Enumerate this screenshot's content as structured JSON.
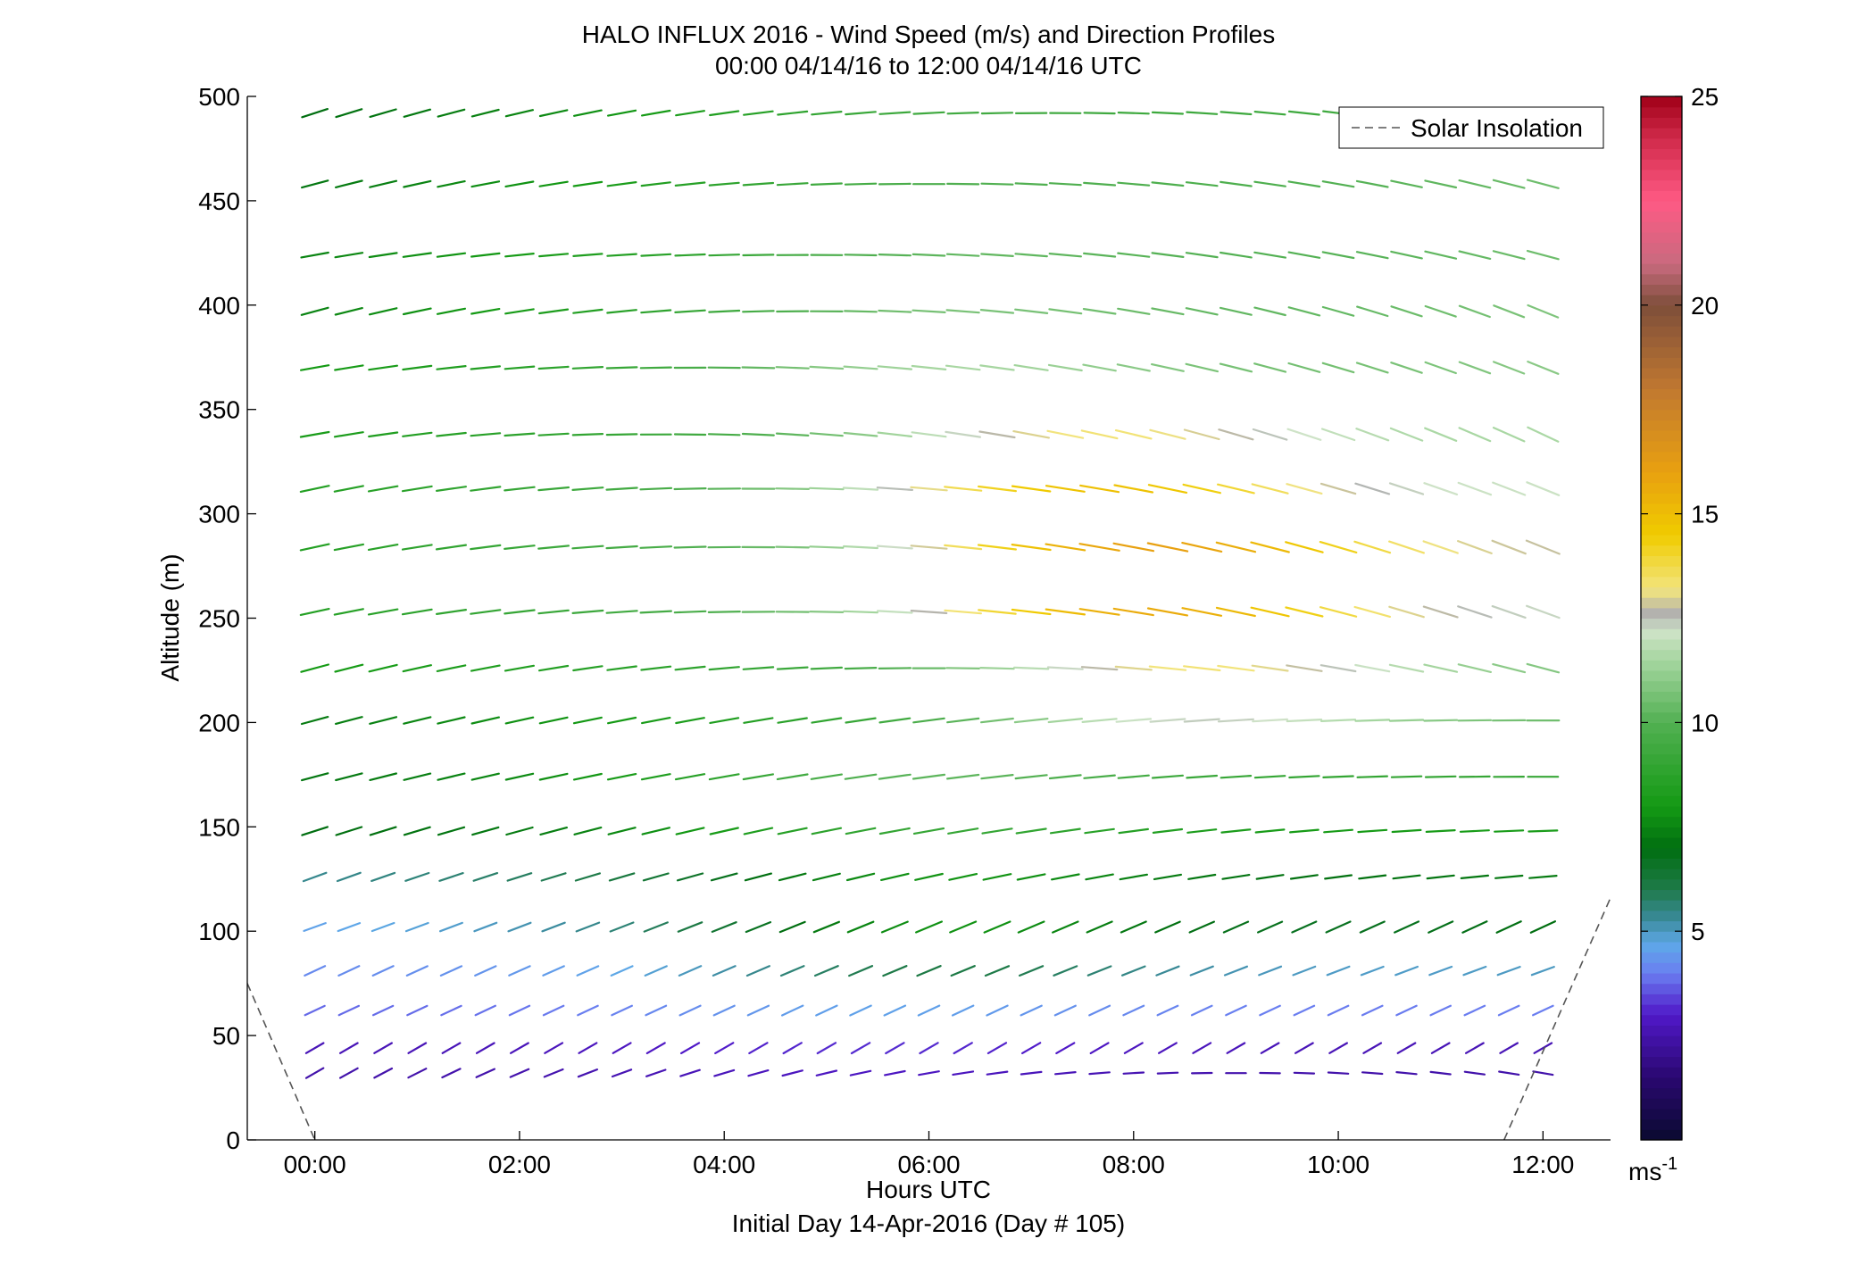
{
  "chart_data": {
    "type": "scatter",
    "title": "HALO INFLUX 2016 - Wind Speed (m/s) and Direction Profiles",
    "subtitle": "00:00 04/14/16 to 12:00 04/14/16  UTC",
    "xlabel": "Hours UTC",
    "xlabel2": "Initial Day 14-Apr-2016 (Day # 105)",
    "ylabel": "Altitude (m)",
    "xlim": [
      -0.66,
      12.66
    ],
    "ylim": [
      0,
      500
    ],
    "x_ticks": [
      0,
      2,
      4,
      6,
      8,
      10,
      12
    ],
    "x_tick_labels": [
      "00:00",
      "02:00",
      "04:00",
      "06:00",
      "08:00",
      "10:00",
      "12:00"
    ],
    "y_ticks": [
      0,
      50,
      100,
      150,
      200,
      250,
      300,
      350,
      400,
      450,
      500
    ],
    "y_tick_labels": [
      "0",
      "50",
      "100",
      "150",
      "200",
      "250",
      "300",
      "350",
      "400",
      "450",
      "500"
    ],
    "legend": {
      "position": "top-right",
      "entries": [
        {
          "name": "Solar Insolation",
          "style": "dashed",
          "color": "#555555"
        }
      ]
    },
    "colorbar": {
      "range": [
        0,
        25
      ],
      "ticks": [
        5,
        10,
        15,
        20,
        25
      ],
      "tick_labels": [
        "5",
        "10",
        "15",
        "20",
        "25"
      ],
      "unit": "ms",
      "unit_exp": "-1",
      "stops": [
        {
          "v": 0,
          "c": "#0a0a30"
        },
        {
          "v": 1.5,
          "c": "#2a0870"
        },
        {
          "v": 3,
          "c": "#5018c8"
        },
        {
          "v": 4,
          "c": "#6a7ef0"
        },
        {
          "v": 4.7,
          "c": "#5ea8e8"
        },
        {
          "v": 5.3,
          "c": "#3a8a9a"
        },
        {
          "v": 6,
          "c": "#1f7a4a"
        },
        {
          "v": 7,
          "c": "#006e10"
        },
        {
          "v": 8,
          "c": "#149a14"
        },
        {
          "v": 10,
          "c": "#52b052"
        },
        {
          "v": 11.5,
          "c": "#a6d6a0"
        },
        {
          "v": 12.2,
          "c": "#cfe3c8"
        },
        {
          "v": 12.6,
          "c": "#b0b0b0"
        },
        {
          "v": 13.2,
          "c": "#f2e47e"
        },
        {
          "v": 14.5,
          "c": "#f0cc00"
        },
        {
          "v": 16,
          "c": "#e8a010"
        },
        {
          "v": 18,
          "c": "#c07830"
        },
        {
          "v": 20,
          "c": "#7e4e3a"
        },
        {
          "v": 21,
          "c": "#c86a7e"
        },
        {
          "v": 22.5,
          "c": "#ff5a84"
        },
        {
          "v": 24,
          "c": "#d02a4a"
        },
        {
          "v": 25,
          "c": "#a00018"
        }
      ]
    },
    "solar_insolation": [
      {
        "x": [
          -0.66,
          0.0
        ],
        "y": [
          75,
          0
        ]
      },
      {
        "x": [
          11.62,
          12.66
        ],
        "y": [
          0,
          116
        ]
      }
    ],
    "altitudes": [
      32,
      44,
      62,
      81,
      102,
      126,
      148,
      174,
      201,
      226,
      253,
      284,
      312,
      338,
      370,
      397,
      424,
      458,
      492
    ],
    "hours": [
      0,
      0.333,
      0.667,
      1,
      1.333,
      1.667,
      2,
      2.333,
      2.667,
      3,
      3.333,
      3.667,
      4,
      4.333,
      4.667,
      5,
      5.333,
      5.667,
      6,
      6.333,
      6.667,
      7,
      7.333,
      7.667,
      8,
      8.333,
      8.667,
      9,
      9.333,
      9.667,
      10,
      10.333,
      10.667,
      11,
      11.333,
      11.667,
      12
    ],
    "wind_speed_profiles": [
      {
        "start": 2.5,
        "end": 2.5,
        "bump": 0.4,
        "bh": 5.5
      },
      {
        "start": 2.7,
        "end": 2.7,
        "bump": 0.5,
        "bh": 5.5
      },
      {
        "start": 3.8,
        "end": 4.0,
        "bump": 0.7,
        "bh": 5.5
      },
      {
        "start": 4.2,
        "end": 5.0,
        "bump": 1.5,
        "bh": 6
      },
      {
        "start": 4.6,
        "end": 7.0,
        "bump": 2.0,
        "bh": 6
      },
      {
        "start": 5.4,
        "end": 7.3,
        "bump": 1.5,
        "bh": 6
      },
      {
        "start": 7.0,
        "end": 8.2,
        "bump": 1.5,
        "bh": 6
      },
      {
        "start": 7.2,
        "end": 9.2,
        "bump": 2.0,
        "bh": 6
      },
      {
        "start": 7.3,
        "end": 10.2,
        "bump": 3.0,
        "bh": 8.5
      },
      {
        "start": 8.0,
        "end": 10.5,
        "bump": 3.5,
        "bh": 8.5
      },
      {
        "start": 8.5,
        "end": 12.0,
        "bump": 4.8,
        "bh": 8
      },
      {
        "start": 8.5,
        "end": 12.5,
        "bump": 4.8,
        "bh": 8
      },
      {
        "start": 8.5,
        "end": 12.0,
        "bump": 4.2,
        "bh": 7.5
      },
      {
        "start": 8.2,
        "end": 11.5,
        "bump": 3.0,
        "bh": 7.5
      },
      {
        "start": 8.0,
        "end": 11.0,
        "bump": 2.0,
        "bh": 6
      },
      {
        "start": 7.5,
        "end": 10.8,
        "bump": 1.5,
        "bh": 6
      },
      {
        "start": 7.5,
        "end": 10.5,
        "bump": 1.2,
        "bh": 6
      },
      {
        "start": 7.2,
        "end": 10.5,
        "bump": 1.0,
        "bh": 6
      },
      {
        "start": 7.0,
        "end": 9.8,
        "bump": 1.0,
        "bh": 6
      }
    ],
    "wind_direction_profiles": [
      {
        "start": 60,
        "end": 100
      },
      {
        "start": 60,
        "end": 60
      },
      {
        "start": 65,
        "end": 65
      },
      {
        "start": 65,
        "end": 70
      },
      {
        "start": 70,
        "end": 65
      },
      {
        "start": 70,
        "end": 85
      },
      {
        "start": 72,
        "end": 88
      },
      {
        "start": 75,
        "end": 90
      },
      {
        "start": 75,
        "end": 90
      },
      {
        "start": 75,
        "end": 105
      },
      {
        "start": 78,
        "end": 110
      },
      {
        "start": 78,
        "end": 112
      },
      {
        "start": 78,
        "end": 112
      },
      {
        "start": 80,
        "end": 115
      },
      {
        "start": 80,
        "end": 112
      },
      {
        "start": 75,
        "end": 112
      },
      {
        "start": 80,
        "end": 105
      },
      {
        "start": 75,
        "end": 105
      },
      {
        "start": 72,
        "end": 102
      }
    ]
  }
}
